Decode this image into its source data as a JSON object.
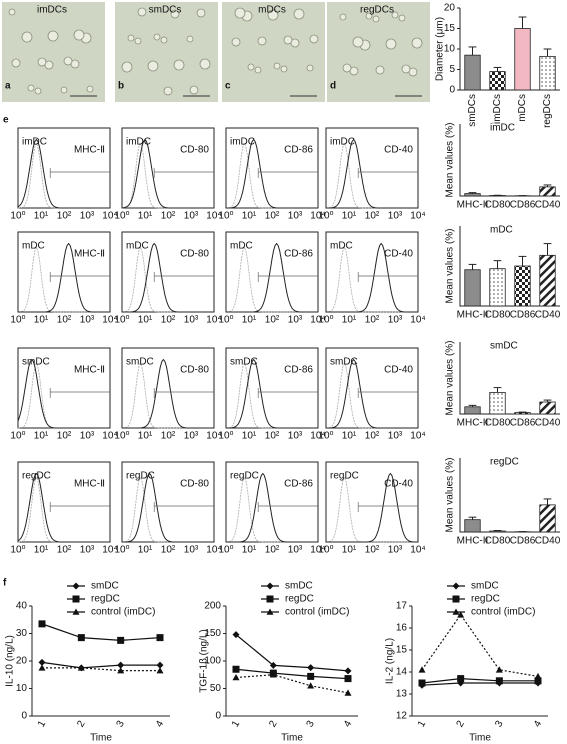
{
  "panel_letters": [
    "a",
    "b",
    "c",
    "d",
    "e",
    "f"
  ],
  "micrographs": [
    "imDCs",
    "smDCs",
    "mDCs",
    "regDCs"
  ],
  "flow": {
    "xticks": [
      "10⁰",
      "10¹",
      "10²",
      "10³",
      "10⁴"
    ],
    "markers": [
      "MHC-Ⅱ",
      "CD-80",
      "CD-86",
      "CD-40"
    ],
    "cells": [
      "imDC",
      "mDC",
      "smDC",
      "regDC"
    ]
  },
  "chart_data": [
    {
      "type": "bar",
      "ylabel": "Diameter (μm)",
      "categories": [
        "smDCs",
        "imDCs",
        "mDCs",
        "regDCs"
      ],
      "values": [
        8.5,
        4.5,
        15,
        8.2
      ],
      "errors": [
        2,
        1,
        2.8,
        1.8
      ],
      "fills": [
        "#8c8c8c",
        "checker",
        "#f3b9c3",
        "dots"
      ],
      "ylim": [
        0,
        20
      ],
      "yticks": [
        0,
        5,
        10,
        15,
        20
      ],
      "rotate_labels": true
    },
    {
      "type": "bar",
      "title": "imDC",
      "ylabel": "Mean values (%)",
      "categories": [
        "MHC-II",
        "CD80",
        "CD86",
        "CD40"
      ],
      "values": [
        5,
        1,
        0.5,
        19
      ],
      "errors": [
        2,
        0.5,
        0.3,
        4
      ],
      "fills": [
        "#8c8c8c",
        "dots",
        "checker",
        "hatch"
      ],
      "ylim": [
        0,
        150
      ]
    },
    {
      "type": "bar",
      "title": "mDC",
      "ylabel": "Mean values (%)",
      "categories": [
        "MHC-II",
        "CD80",
        "CD86",
        "CD40"
      ],
      "values": [
        68,
        70,
        75,
        95
      ],
      "errors": [
        10,
        15,
        18,
        22
      ],
      "fills": [
        "#8c8c8c",
        "dots",
        "checker",
        "hatch"
      ],
      "ylim": [
        0,
        150
      ]
    },
    {
      "type": "bar",
      "title": "smDC",
      "ylabel": "Mean values (%)",
      "categories": [
        "MHC-II",
        "CD80",
        "CD86",
        "CD40"
      ],
      "values": [
        15,
        45,
        3,
        25
      ],
      "errors": [
        3,
        10,
        1,
        4
      ],
      "fills": [
        "#8c8c8c",
        "dots",
        "checker",
        "hatch"
      ],
      "ylim": [
        0,
        150
      ]
    },
    {
      "type": "bar",
      "title": "regDC",
      "ylabel": "Mean values (%)",
      "categories": [
        "MHC-II",
        "CD80",
        "CD86",
        "CD40"
      ],
      "values": [
        25,
        2,
        0.5,
        55
      ],
      "errors": [
        5,
        1,
        0.3,
        12
      ],
      "fills": [
        "#8c8c8c",
        "dots",
        "checker",
        "hatch"
      ],
      "ylim": [
        0,
        150
      ]
    },
    {
      "type": "line",
      "ylabel": "IL-10 (ng/L)",
      "xlabel": "Time",
      "categories": [
        "1",
        "2",
        "3",
        "4"
      ],
      "ylim": [
        0,
        40
      ],
      "yticks": [
        0,
        10,
        20,
        30,
        40
      ],
      "series": [
        {
          "name": "smDC",
          "marker": "diamond",
          "dashed": false,
          "values": [
            19.5,
            17.5,
            18.5,
            18.5
          ]
        },
        {
          "name": "regDC",
          "marker": "square",
          "dashed": false,
          "values": [
            33.5,
            28.5,
            27.5,
            28.5
          ]
        },
        {
          "name": "control (imDC)",
          "marker": "triangle",
          "dashed": true,
          "values": [
            17.5,
            17.5,
            16.5,
            16.5
          ]
        }
      ]
    },
    {
      "type": "line",
      "ylabel": "TGF-1β (ng/L)",
      "xlabel": "Time",
      "categories": [
        "1",
        "2",
        "3",
        "4"
      ],
      "ylim": [
        0,
        200
      ],
      "yticks": [
        0,
        50,
        100,
        150,
        200
      ],
      "series": [
        {
          "name": "smDC",
          "marker": "diamond",
          "dashed": false,
          "values": [
            148,
            92,
            88,
            82
          ]
        },
        {
          "name": "regDC",
          "marker": "square",
          "dashed": false,
          "values": [
            85,
            78,
            72,
            68
          ]
        },
        {
          "name": "control (imDC)",
          "marker": "triangle",
          "dashed": true,
          "values": [
            70,
            75,
            55,
            42
          ]
        }
      ]
    },
    {
      "type": "line",
      "ylabel": "IL-2 (ng/L)",
      "xlabel": "Time",
      "categories": [
        "1",
        "2",
        "3",
        "4"
      ],
      "ylim": [
        12,
        17
      ],
      "yticks": [
        12,
        13,
        14,
        15,
        16,
        17
      ],
      "series": [
        {
          "name": "smDC",
          "marker": "diamond",
          "dashed": false,
          "values": [
            13.4,
            13.5,
            13.5,
            13.5
          ]
        },
        {
          "name": "regDC",
          "marker": "square",
          "dashed": false,
          "values": [
            13.5,
            13.7,
            13.6,
            13.6
          ]
        },
        {
          "name": "control (imDC)",
          "marker": "triangle",
          "dashed": true,
          "values": [
            14.1,
            16.6,
            14.1,
            13.8
          ]
        }
      ]
    }
  ]
}
